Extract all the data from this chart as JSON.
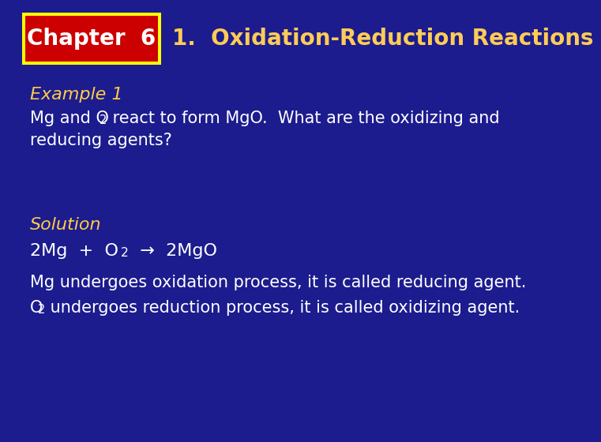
{
  "bg_color": "#1c1c8f",
  "header_title": "1.  Oxidation-Reduction Reactions",
  "header_title_color": "#ffcc55",
  "chapter_box_bg": "#cc0000",
  "chapter_box_border": "#ffff00",
  "chapter_text": "Chapter  6",
  "chapter_text_color": "#ffffff",
  "example_label": "Example 1",
  "example_label_color": "#ffcc44",
  "problem_color": "#ffffff",
  "solution_label": "Solution",
  "solution_label_color": "#ffcc44",
  "equation_color": "#ffffff",
  "body_color": "#ffffff",
  "fontsize_header": 20,
  "fontsize_body": 15,
  "fontsize_eq": 16,
  "fontsize_label": 16
}
